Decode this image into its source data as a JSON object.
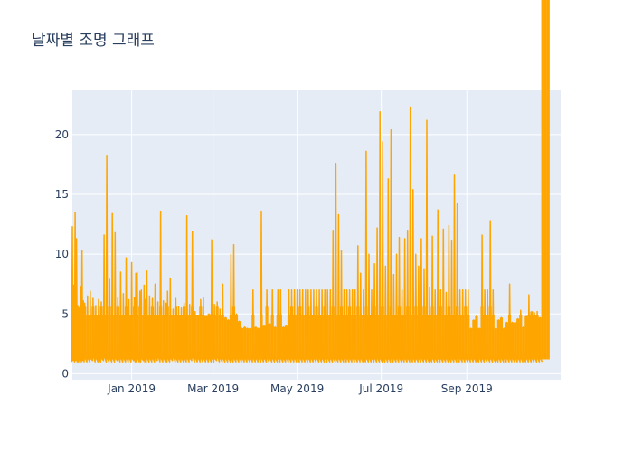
{
  "chart_data": {
    "type": "line",
    "title": "날짜별 조명 그래프",
    "xlabel": "",
    "ylabel": "",
    "x_range": [
      "2018-11-19",
      "2019-11-08"
    ],
    "ylim": [
      -0.5,
      23.7
    ],
    "x_ticks": [
      "2019-01-01",
      "2019-03-01",
      "2019-05-01",
      "2019-07-01",
      "2019-09-01"
    ],
    "x_tick_labels": [
      "Jan 2019",
      "Mar 2019",
      "May 2019",
      "Jul 2019",
      "Sep 2019"
    ],
    "y_ticks": [
      0,
      5,
      10,
      15,
      20
    ],
    "y_tick_labels": [
      "0",
      "5",
      "10",
      "15",
      "20"
    ],
    "grid": true,
    "legend": "none",
    "colors": {
      "line": "#ffa500",
      "plot_bg": "#e5ecf6",
      "grid": "#ffffff",
      "text": "#2a3f5f"
    },
    "series": [
      {
        "x": [
          "2018-11-19",
          "2018-11-20",
          "2018-11-21",
          "2018-11-22",
          "2018-11-23",
          "2018-11-24",
          "2018-11-25",
          "2018-11-26",
          "2018-11-27",
          "2018-11-28",
          "2018-11-30",
          "2018-12-02",
          "2018-12-04",
          "2018-12-06",
          "2018-12-08",
          "2018-12-10",
          "2018-12-12",
          "2018-12-14",
          "2018-12-16",
          "2018-12-18",
          "2018-12-20",
          "2018-12-22",
          "2018-12-24",
          "2018-12-26",
          "2018-12-28",
          "2018-12-30",
          "2019-01-01",
          "2019-01-03",
          "2019-01-04",
          "2019-01-05",
          "2019-01-07",
          "2019-01-08",
          "2019-01-10",
          "2019-01-11",
          "2019-01-12",
          "2019-01-14",
          "2019-01-16",
          "2019-01-18",
          "2019-01-20",
          "2019-01-22",
          "2019-01-24",
          "2019-01-26",
          "2019-01-27",
          "2019-01-29",
          "2019-01-31",
          "2019-02-02",
          "2019-02-04",
          "2019-02-06",
          "2019-02-08",
          "2019-02-10",
          "2019-02-12",
          "2019-02-14",
          "2019-02-16",
          "2019-02-18",
          "2019-02-20",
          "2019-02-22",
          "2019-02-24",
          "2019-02-26",
          "2019-02-28",
          "2019-03-02",
          "2019-03-04",
          "2019-03-06",
          "2019-03-08",
          "2019-03-10",
          "2019-03-12",
          "2019-03-14",
          "2019-03-16",
          "2019-03-18",
          "2019-03-20",
          "2019-03-22",
          "2019-03-24",
          "2019-03-26",
          "2019-03-28",
          "2019-03-30",
          "2019-04-01",
          "2019-04-03",
          "2019-04-05",
          "2019-04-07",
          "2019-04-09",
          "2019-04-11",
          "2019-04-13",
          "2019-04-15",
          "2019-04-17",
          "2019-04-19",
          "2019-04-21",
          "2019-04-23",
          "2019-04-25",
          "2019-04-27",
          "2019-04-29",
          "2019-05-01",
          "2019-05-03",
          "2019-05-05",
          "2019-05-07",
          "2019-05-09",
          "2019-05-11",
          "2019-05-13",
          "2019-05-15",
          "2019-05-17",
          "2019-05-19",
          "2019-05-21",
          "2019-05-23",
          "2019-05-25",
          "2019-05-27",
          "2019-05-29",
          "2019-05-31",
          "2019-06-02",
          "2019-06-04",
          "2019-06-06",
          "2019-06-08",
          "2019-06-10",
          "2019-06-12",
          "2019-06-14",
          "2019-06-16",
          "2019-06-18",
          "2019-06-20",
          "2019-06-22",
          "2019-06-24",
          "2019-06-26",
          "2019-06-28",
          "2019-06-30",
          "2019-07-02",
          "2019-07-04",
          "2019-07-06",
          "2019-07-08",
          "2019-07-10",
          "2019-07-12",
          "2019-07-14",
          "2019-07-16",
          "2019-07-18",
          "2019-07-20",
          "2019-07-22",
          "2019-07-24",
          "2019-07-26",
          "2019-07-28",
          "2019-07-30",
          "2019-08-01",
          "2019-08-03",
          "2019-08-05",
          "2019-08-07",
          "2019-08-09",
          "2019-08-11",
          "2019-08-13",
          "2019-08-15",
          "2019-08-17",
          "2019-08-19",
          "2019-08-21",
          "2019-08-23",
          "2019-08-25",
          "2019-08-27",
          "2019-08-29",
          "2019-08-31",
          "2019-09-02",
          "2019-09-04",
          "2019-09-06",
          "2019-09-08",
          "2019-09-10",
          "2019-09-12",
          "2019-09-14",
          "2019-09-16",
          "2019-09-18",
          "2019-09-20",
          "2019-09-22",
          "2019-09-24",
          "2019-09-26",
          "2019-09-28",
          "2019-09-30",
          "2019-10-02",
          "2019-10-04",
          "2019-10-06",
          "2019-10-08",
          "2019-10-10",
          "2019-10-12",
          "2019-10-14",
          "2019-10-16",
          "2019-10-18",
          "2019-10-20",
          "2019-10-22",
          "2019-10-24",
          "2019-10-26",
          "2019-10-28",
          "2019-10-30",
          "2019-11-01",
          "2019-11-03",
          "2019-11-05",
          "2019-11-07"
        ],
        "min": [
          1.0,
          1.1,
          1.0,
          1.1,
          1.0,
          1.0,
          1.1,
          1.0,
          1.1,
          1.0,
          1.0,
          1.0,
          1.1,
          1.0,
          1.0,
          1.0,
          1.1,
          1.0,
          1.0,
          1.0,
          1.0,
          1.1,
          1.0,
          1.0,
          1.0,
          1.0,
          1.0,
          1.1,
          1.0,
          1.0,
          1.0,
          1.0,
          1.1,
          1.0,
          1.0,
          1.0,
          1.0,
          1.0,
          1.1,
          1.0,
          1.0,
          1.0,
          1.0,
          1.0,
          1.1,
          1.0,
          1.0,
          1.0,
          1.0,
          1.0,
          1.0,
          1.1,
          1.0,
          1.0,
          1.0,
          1.0,
          1.0,
          1.0,
          1.0,
          1.0,
          1.1,
          1.0,
          1.0,
          1.0,
          1.0,
          1.0,
          1.0,
          1.0,
          1.0,
          1.0,
          1.0,
          1.0,
          1.0,
          1.0,
          1.0,
          1.0,
          1.0,
          1.0,
          1.0,
          1.0,
          1.0,
          1.0,
          1.0,
          1.0,
          1.0,
          1.0,
          1.0,
          1.0,
          1.0,
          1.0,
          1.0,
          1.0,
          1.0,
          1.0,
          1.0,
          1.0,
          1.0,
          1.0,
          1.0,
          1.0,
          1.0,
          1.0,
          1.0,
          1.0,
          1.0,
          1.0,
          1.0,
          1.0,
          1.0,
          1.0,
          1.0,
          1.0,
          1.0,
          1.0,
          1.0,
          1.0,
          1.0,
          1.0,
          1.0,
          1.0,
          1.0,
          1.0,
          1.0,
          1.0,
          1.0,
          1.0,
          1.0,
          1.0,
          1.0,
          1.0,
          1.0,
          1.0,
          1.0,
          1.0,
          1.0,
          1.0,
          1.0,
          1.0,
          1.0,
          1.0,
          1.0,
          1.0,
          1.0,
          1.0,
          1.0,
          1.0,
          1.0,
          1.0,
          1.0,
          1.0,
          1.0,
          1.0,
          1.0,
          1.0,
          1.0,
          1.0,
          1.0,
          1.0,
          1.0,
          1.0,
          1.0,
          1.0,
          1.0,
          1.0,
          1.0,
          1.0,
          1.0,
          1.0,
          1.0,
          1.0,
          1.0,
          1.0,
          1.0,
          1.0,
          1.0,
          1.0,
          1.0,
          1.0,
          1.0,
          1.0,
          1.0
        ],
        "max": [
          12.3,
          7.4,
          13.5,
          11.3,
          5.7,
          5.5,
          7.3,
          10.3,
          6.1,
          5.9,
          6.5,
          6.9,
          6.3,
          5.7,
          6.2,
          6.0,
          11.6,
          18.2,
          7.9,
          13.4,
          11.8,
          6.4,
          8.5,
          6.7,
          9.7,
          6.2,
          9.3,
          6.4,
          8.4,
          8.5,
          6.9,
          7.0,
          7.4,
          6.2,
          8.6,
          6.5,
          6.3,
          7.5,
          6.0,
          13.6,
          6.1,
          5.9,
          6.9,
          8.0,
          5.4,
          6.3,
          5.6,
          5.5,
          5.9,
          13.2,
          5.8,
          11.9,
          5.2,
          4.9,
          6.2,
          6.4,
          4.8,
          5.0,
          11.2,
          5.8,
          6.0,
          5.4,
          7.5,
          4.7,
          4.5,
          10.0,
          10.8,
          5.0,
          4.4,
          3.8,
          3.9,
          3.8,
          3.8,
          7.0,
          3.9,
          3.8,
          13.6,
          4.0,
          7.0,
          4.2,
          7.0,
          3.9,
          7.0,
          7.0,
          3.9,
          4.0,
          7.0,
          7.0,
          7.0,
          7.0,
          7.0,
          7.0,
          7.0,
          7.0,
          7.0,
          7.0,
          7.0,
          7.0,
          7.0,
          7.0,
          7.0,
          7.0,
          12.0,
          17.6,
          13.3,
          10.3,
          7.0,
          7.0,
          7.0,
          7.0,
          7.0,
          10.7,
          8.4,
          7.0,
          18.6,
          10.0,
          7.0,
          9.2,
          12.2,
          21.9,
          19.4,
          9.0,
          16.3,
          20.4,
          8.3,
          10.0,
          11.4,
          7.0,
          11.3,
          12.0,
          22.3,
          15.4,
          10.0,
          9.0,
          11.3,
          8.7,
          21.2,
          7.2,
          11.5,
          7.0,
          13.7,
          7.0,
          12.1,
          6.8,
          12.4,
          11.1,
          16.6,
          14.2,
          7.0,
          7.0,
          7.0,
          7.0,
          3.8,
          4.5,
          4.8,
          3.8,
          11.6,
          7.0,
          7.0,
          12.8,
          7.0,
          3.8,
          4.5,
          4.7,
          3.8,
          4.3,
          7.5,
          4.3,
          4.3,
          4.6,
          5.3,
          3.9,
          4.8,
          6.6,
          5.2,
          5.1,
          5.2,
          4.7
        ]
      }
    ]
  }
}
